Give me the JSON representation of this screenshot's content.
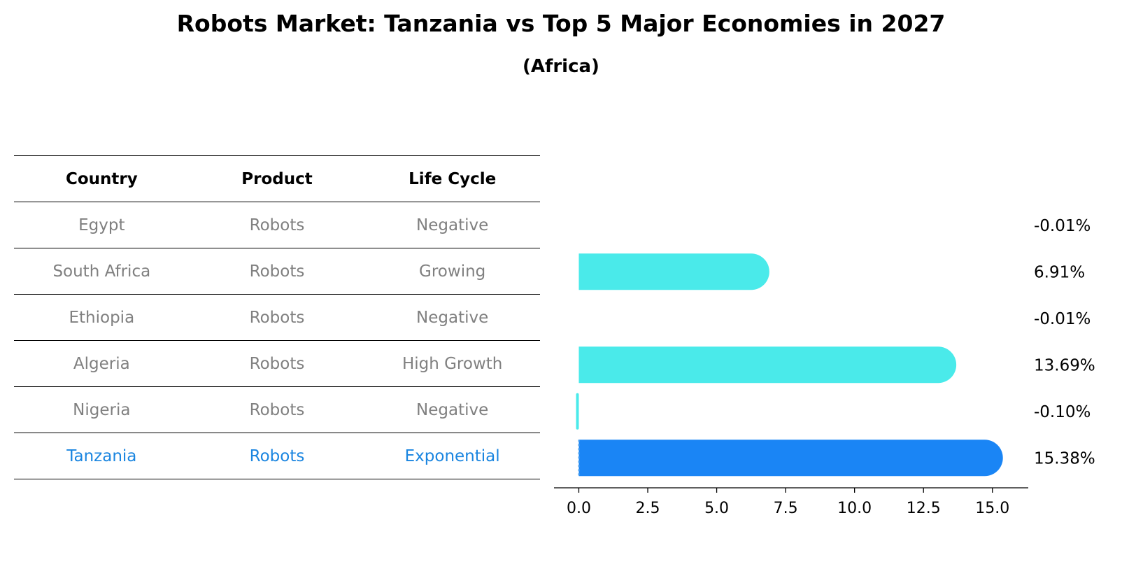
{
  "title": "Robots Market: Tanzania vs Top 5 Major Economies in 2027",
  "subtitle": "(Africa)",
  "table": {
    "headers": [
      "Country",
      "Product",
      "Life Cycle"
    ],
    "rows": [
      [
        "Egypt",
        "Robots",
        "Negative"
      ],
      [
        "South Africa",
        "Robots",
        "Growing"
      ],
      [
        "Ethiopia",
        "Robots",
        "Negative"
      ],
      [
        "Algeria",
        "Robots",
        "High Growth"
      ],
      [
        "Nigeria",
        "Robots",
        "Negative"
      ],
      [
        "Tanzania",
        "Robots",
        "Exponential"
      ]
    ]
  },
  "chart_data": {
    "type": "bar",
    "orientation": "horizontal",
    "categories": [
      "Egypt",
      "South Africa",
      "Ethiopia",
      "Algeria",
      "Nigeria",
      "Tanzania"
    ],
    "values": [
      -0.01,
      6.91,
      -0.01,
      13.69,
      -0.1,
      15.38
    ],
    "value_labels": [
      "-0.01%",
      "6.91%",
      "-0.01%",
      "13.69%",
      "-0.10%",
      "15.38%"
    ],
    "highlight": "Tanzania",
    "xlim": [
      -0.9,
      16.3
    ],
    "xticks": [
      0.0,
      2.5,
      5.0,
      7.5,
      10.0,
      12.5,
      15.0
    ],
    "xtick_labels": [
      "0.0",
      "2.5",
      "5.0",
      "7.5",
      "10.0",
      "12.5",
      "15.0"
    ],
    "colors": {
      "default": "#4aeaea",
      "highlight": "#1a85f5"
    }
  }
}
